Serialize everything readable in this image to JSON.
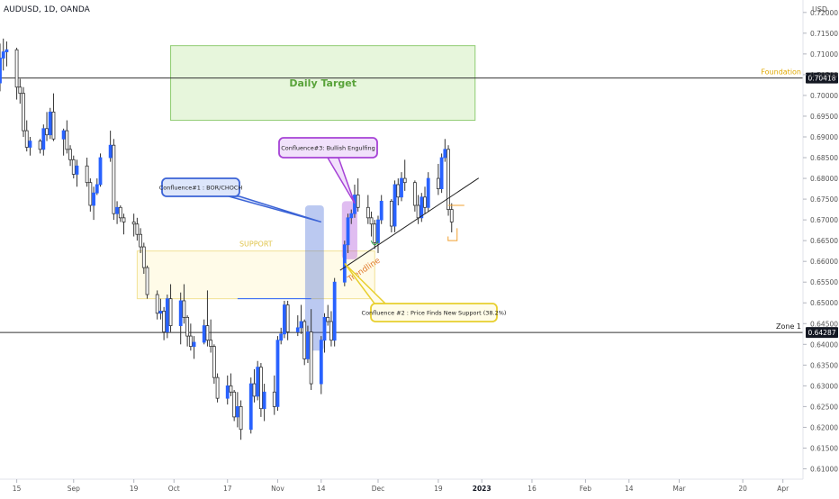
{
  "header": {
    "symbol": "AUDUSD, 1D, OANDA",
    "currency": "USD"
  },
  "colors": {
    "bull": "#2962ff",
    "bear": "#ffffff",
    "wick": "#333333",
    "axis_text": "#555555",
    "target_fill": "#e3f5d6",
    "target_border": "#7cc45a",
    "target_text": "#59a33a",
    "support_fill": "#fffbe6",
    "support_border": "#f1de8a",
    "support_text": "#e0c44a",
    "blue_callout": "#3b63d6",
    "blue_fill": "#dde6fb",
    "yellow_callout": "#e8cf2e",
    "yellow_fill": "#fffce8",
    "purple_callout": "#a642d6",
    "purple_fill": "#f1e1fb",
    "trend_text": "#e07a2c"
  },
  "chart_data": {
    "type": "candlestick",
    "title": "AUDUSD, 1D, OANDA",
    "y_unit": "USD",
    "ylim": [
      0.6075,
      0.723
    ],
    "y_ticks": [
      "0.72000",
      "0.71500",
      "0.71000",
      "0.70500",
      "0.70000",
      "0.69500",
      "0.69000",
      "0.68500",
      "0.68000",
      "0.67500",
      "0.67000",
      "0.66500",
      "0.66000",
      "0.65500",
      "0.65000",
      "0.64500",
      "0.64000",
      "0.63500",
      "0.63000",
      "0.62500",
      "0.62000",
      "0.61500",
      "0.61000"
    ],
    "y_tick_values": [
      0.72,
      0.715,
      0.71,
      0.705,
      0.7,
      0.695,
      0.69,
      0.685,
      0.68,
      0.675,
      0.67,
      0.665,
      0.66,
      0.655,
      0.65,
      0.645,
      0.64,
      0.635,
      0.63,
      0.625,
      0.62,
      0.615,
      0.61
    ],
    "x_ticks": [
      {
        "label": "15",
        "date": "2022-08-15"
      },
      {
        "label": "Sep",
        "date": "2022-09-01"
      },
      {
        "label": "19",
        "date": "2022-09-19"
      },
      {
        "label": "Oct",
        "date": "2022-10-01"
      },
      {
        "label": "17",
        "date": "2022-10-17"
      },
      {
        "label": "Nov",
        "date": "2022-11-01"
      },
      {
        "label": "14",
        "date": "2022-11-14"
      },
      {
        "label": "Dec",
        "date": "2022-12-01"
      },
      {
        "label": "19",
        "date": "2022-12-19"
      },
      {
        "label": "2023",
        "date": "2023-01-01"
      },
      {
        "label": "16",
        "date": "2023-01-16"
      },
      {
        "label": "Feb",
        "date": "2023-02-01"
      },
      {
        "label": "14",
        "date": "2023-02-14"
      },
      {
        "label": "Mar",
        "date": "2023-03-01"
      },
      {
        "label": "20",
        "date": "2023-03-20"
      },
      {
        "label": "Apr",
        "date": "2023-04-01"
      }
    ],
    "x_range": [
      "2022-08-10",
      "2023-04-07"
    ],
    "horizontal_levels": [
      {
        "name": "Foundation",
        "value": 0.70418,
        "label": "0.70418"
      },
      {
        "name": "Zone 1",
        "value": 0.64287,
        "label": "0.64287"
      }
    ],
    "zones": [
      {
        "name": "Daily Target",
        "date_from": "2022-09-30",
        "date_to": "2022-12-30",
        "y_from": 0.694,
        "y_to": 0.712
      },
      {
        "name": "SUPPORT",
        "date_from": "2022-09-20",
        "date_to": "2022-11-30",
        "y_from": 0.651,
        "y_to": 0.6625
      }
    ],
    "trendline": {
      "label": "Trendline",
      "from": {
        "date": "2022-11-21",
        "value": 0.6585
      },
      "to": {
        "date": "2022-12-23",
        "value": 0.679
      }
    },
    "annotations": [
      {
        "text": "Confluence#1 : BOR/CHOCH",
        "style": "blue",
        "target": {
          "date": "2022-11-14",
          "value": 0.6695
        }
      },
      {
        "text": "Confluence #2 : Price Finds New Support (38.2%)",
        "style": "yellow",
        "target": {
          "date": "2022-11-21",
          "value": 0.6595
        }
      },
      {
        "text": "Confluence#3: Bullish Engulfing",
        "style": "purple",
        "target": {
          "date": "2022-11-24",
          "value": 0.674
        }
      }
    ],
    "highlights": [
      {
        "style": "blue",
        "date_from": "2022-11-10",
        "date_to": "2022-11-14",
        "y_from": 0.6385,
        "y_to": 0.6735
      },
      {
        "style": "purple",
        "date_from": "2022-11-21",
        "date_to": "2022-11-24",
        "y_from": 0.6605,
        "y_to": 0.6745
      }
    ],
    "candles": [
      {
        "date": "2022-08-10",
        "o": 0.703,
        "h": 0.7125,
        "l": 0.701,
        "c": 0.709
      },
      {
        "date": "2022-08-11",
        "o": 0.709,
        "h": 0.7137,
        "l": 0.706,
        "c": 0.7105
      },
      {
        "date": "2022-08-12",
        "o": 0.7105,
        "h": 0.713,
        "l": 0.707,
        "c": 0.711
      },
      {
        "date": "2022-08-15",
        "o": 0.711,
        "h": 0.7115,
        "l": 0.699,
        "c": 0.702
      },
      {
        "date": "2022-08-16",
        "o": 0.702,
        "h": 0.704,
        "l": 0.698,
        "c": 0.7005
      },
      {
        "date": "2022-08-17",
        "o": 0.7005,
        "h": 0.702,
        "l": 0.69,
        "c": 0.6915
      },
      {
        "date": "2022-08-18",
        "o": 0.6915,
        "h": 0.694,
        "l": 0.6865,
        "c": 0.6875
      },
      {
        "date": "2022-08-19",
        "o": 0.6875,
        "h": 0.69,
        "l": 0.6855,
        "c": 0.689
      },
      {
        "date": "2022-08-22",
        "o": 0.689,
        "h": 0.6895,
        "l": 0.686,
        "c": 0.687
      },
      {
        "date": "2022-08-23",
        "o": 0.687,
        "h": 0.693,
        "l": 0.6855,
        "c": 0.692
      },
      {
        "date": "2022-08-24",
        "o": 0.692,
        "h": 0.696,
        "l": 0.689,
        "c": 0.6905
      },
      {
        "date": "2022-08-25",
        "o": 0.6905,
        "h": 0.697,
        "l": 0.6895,
        "c": 0.696
      },
      {
        "date": "2022-08-26",
        "o": 0.696,
        "h": 0.7005,
        "l": 0.689,
        "c": 0.6895
      },
      {
        "date": "2022-08-29",
        "o": 0.6895,
        "h": 0.692,
        "l": 0.6855,
        "c": 0.6915
      },
      {
        "date": "2022-08-30",
        "o": 0.6915,
        "h": 0.694,
        "l": 0.686,
        "c": 0.687
      },
      {
        "date": "2022-08-31",
        "o": 0.687,
        "h": 0.688,
        "l": 0.683,
        "c": 0.6845
      },
      {
        "date": "2022-09-01",
        "o": 0.6845,
        "h": 0.6855,
        "l": 0.68,
        "c": 0.681
      },
      {
        "date": "2022-09-02",
        "o": 0.681,
        "h": 0.6845,
        "l": 0.678,
        "c": 0.683
      },
      {
        "date": "2022-09-05",
        "o": 0.683,
        "h": 0.685,
        "l": 0.678,
        "c": 0.679
      },
      {
        "date": "2022-09-06",
        "o": 0.679,
        "h": 0.68,
        "l": 0.672,
        "c": 0.6735
      },
      {
        "date": "2022-09-07",
        "o": 0.6735,
        "h": 0.678,
        "l": 0.67,
        "c": 0.6765
      },
      {
        "date": "2022-09-08",
        "o": 0.6765,
        "h": 0.68,
        "l": 0.676,
        "c": 0.6785
      },
      {
        "date": "2022-09-09",
        "o": 0.6785,
        "h": 0.686,
        "l": 0.678,
        "c": 0.685
      },
      {
        "date": "2022-09-12",
        "o": 0.685,
        "h": 0.6915,
        "l": 0.684,
        "c": 0.688
      },
      {
        "date": "2022-09-13",
        "o": 0.688,
        "h": 0.6895,
        "l": 0.67,
        "c": 0.6715
      },
      {
        "date": "2022-09-14",
        "o": 0.6715,
        "h": 0.6745,
        "l": 0.669,
        "c": 0.673
      },
      {
        "date": "2022-09-15",
        "o": 0.673,
        "h": 0.6735,
        "l": 0.6695,
        "c": 0.6705
      },
      {
        "date": "2022-09-16",
        "o": 0.6705,
        "h": 0.6715,
        "l": 0.6665,
        "c": 0.6695
      },
      {
        "date": "2022-09-19",
        "o": 0.6695,
        "h": 0.6715,
        "l": 0.666,
        "c": 0.669
      },
      {
        "date": "2022-09-20",
        "o": 0.669,
        "h": 0.6705,
        "l": 0.665,
        "c": 0.6665
      },
      {
        "date": "2022-09-21",
        "o": 0.6665,
        "h": 0.668,
        "l": 0.662,
        "c": 0.6635
      },
      {
        "date": "2022-09-22",
        "o": 0.6635,
        "h": 0.6645,
        "l": 0.657,
        "c": 0.6585
      },
      {
        "date": "2022-09-23",
        "o": 0.6585,
        "h": 0.659,
        "l": 0.651,
        "c": 0.652
      },
      {
        "date": "2022-09-26",
        "o": 0.652,
        "h": 0.653,
        "l": 0.646,
        "c": 0.6475
      },
      {
        "date": "2022-09-27",
        "o": 0.6475,
        "h": 0.651,
        "l": 0.646,
        "c": 0.648
      },
      {
        "date": "2022-09-28",
        "o": 0.648,
        "h": 0.649,
        "l": 0.641,
        "c": 0.643
      },
      {
        "date": "2022-09-29",
        "o": 0.643,
        "h": 0.652,
        "l": 0.6415,
        "c": 0.651
      },
      {
        "date": "2022-09-30",
        "o": 0.651,
        "h": 0.6545,
        "l": 0.643,
        "c": 0.6445
      },
      {
        "date": "2022-10-03",
        "o": 0.6445,
        "h": 0.6525,
        "l": 0.64,
        "c": 0.6505
      },
      {
        "date": "2022-10-04",
        "o": 0.6505,
        "h": 0.6545,
        "l": 0.645,
        "c": 0.6465
      },
      {
        "date": "2022-10-05",
        "o": 0.6465,
        "h": 0.647,
        "l": 0.6395,
        "c": 0.642
      },
      {
        "date": "2022-10-06",
        "o": 0.642,
        "h": 0.645,
        "l": 0.6385,
        "c": 0.6395
      },
      {
        "date": "2022-10-07",
        "o": 0.6395,
        "h": 0.642,
        "l": 0.6365,
        "c": 0.6405
      },
      {
        "date": "2022-10-10",
        "o": 0.6405,
        "h": 0.646,
        "l": 0.64,
        "c": 0.6445
      },
      {
        "date": "2022-10-11",
        "o": 0.6445,
        "h": 0.653,
        "l": 0.6395,
        "c": 0.641
      },
      {
        "date": "2022-10-12",
        "o": 0.641,
        "h": 0.646,
        "l": 0.638,
        "c": 0.6395
      },
      {
        "date": "2022-10-13",
        "o": 0.6395,
        "h": 0.64,
        "l": 0.6305,
        "c": 0.632
      },
      {
        "date": "2022-10-14",
        "o": 0.632,
        "h": 0.633,
        "l": 0.626,
        "c": 0.627
      },
      {
        "date": "2022-10-17",
        "o": 0.627,
        "h": 0.6325,
        "l": 0.6255,
        "c": 0.63
      },
      {
        "date": "2022-10-18",
        "o": 0.63,
        "h": 0.633,
        "l": 0.6275,
        "c": 0.6285
      },
      {
        "date": "2022-10-19",
        "o": 0.6285,
        "h": 0.629,
        "l": 0.6215,
        "c": 0.6225
      },
      {
        "date": "2022-10-20",
        "o": 0.6225,
        "h": 0.6285,
        "l": 0.62,
        "c": 0.625
      },
      {
        "date": "2022-10-21",
        "o": 0.625,
        "h": 0.6265,
        "l": 0.617,
        "c": 0.6195
      },
      {
        "date": "2022-10-24",
        "o": 0.6195,
        "h": 0.632,
        "l": 0.6185,
        "c": 0.6305
      },
      {
        "date": "2022-10-25",
        "o": 0.6305,
        "h": 0.634,
        "l": 0.626,
        "c": 0.6275
      },
      {
        "date": "2022-10-26",
        "o": 0.6275,
        "h": 0.636,
        "l": 0.6265,
        "c": 0.6345
      },
      {
        "date": "2022-10-27",
        "o": 0.6345,
        "h": 0.6355,
        "l": 0.6225,
        "c": 0.6245
      },
      {
        "date": "2022-10-28",
        "o": 0.6245,
        "h": 0.6305,
        "l": 0.6215,
        "c": 0.6285
      },
      {
        "date": "2022-10-31",
        "o": 0.6285,
        "h": 0.6325,
        "l": 0.623,
        "c": 0.625
      },
      {
        "date": "2022-11-01",
        "o": 0.625,
        "h": 0.642,
        "l": 0.624,
        "c": 0.641
      },
      {
        "date": "2022-11-02",
        "o": 0.641,
        "h": 0.644,
        "l": 0.64,
        "c": 0.6425
      },
      {
        "date": "2022-11-03",
        "o": 0.6425,
        "h": 0.6505,
        "l": 0.6415,
        "c": 0.6495
      },
      {
        "date": "2022-11-04",
        "o": 0.6495,
        "h": 0.6505,
        "l": 0.641,
        "c": 0.643
      },
      {
        "date": "2022-11-07",
        "o": 0.643,
        "h": 0.647,
        "l": 0.642,
        "c": 0.644
      },
      {
        "date": "2022-11-08",
        "o": 0.644,
        "h": 0.6495,
        "l": 0.6425,
        "c": 0.6455
      },
      {
        "date": "2022-11-09",
        "o": 0.6455,
        "h": 0.646,
        "l": 0.635,
        "c": 0.6365
      },
      {
        "date": "2022-11-10",
        "o": 0.6365,
        "h": 0.6445,
        "l": 0.6355,
        "c": 0.643
      },
      {
        "date": "2022-11-11",
        "o": 0.643,
        "h": 0.6485,
        "l": 0.629,
        "c": 0.6305
      },
      {
        "date": "2022-11-14",
        "o": 0.6305,
        "h": 0.642,
        "l": 0.628,
        "c": 0.641
      },
      {
        "date": "2022-11-15",
        "o": 0.641,
        "h": 0.6475,
        "l": 0.638,
        "c": 0.6465
      },
      {
        "date": "2022-11-16",
        "o": 0.6465,
        "h": 0.6495,
        "l": 0.6445,
        "c": 0.6455
      },
      {
        "date": "2022-11-17",
        "o": 0.6455,
        "h": 0.648,
        "l": 0.6395,
        "c": 0.641
      },
      {
        "date": "2022-11-18",
        "o": 0.641,
        "h": 0.656,
        "l": 0.6395,
        "c": 0.655
      },
      {
        "date": "2022-11-21",
        "o": 0.655,
        "h": 0.665,
        "l": 0.654,
        "c": 0.664
      },
      {
        "date": "2022-11-22",
        "o": 0.664,
        "h": 0.6715,
        "l": 0.662,
        "c": 0.6705
      },
      {
        "date": "2022-11-23",
        "o": 0.6705,
        "h": 0.6725,
        "l": 0.669,
        "c": 0.6715
      },
      {
        "date": "2022-11-24",
        "o": 0.6715,
        "h": 0.6785,
        "l": 0.6705,
        "c": 0.676
      },
      {
        "date": "2022-11-25",
        "o": 0.676,
        "h": 0.68,
        "l": 0.672,
        "c": 0.673
      },
      {
        "date": "2022-11-28",
        "o": 0.673,
        "h": 0.676,
        "l": 0.669,
        "c": 0.6705
      },
      {
        "date": "2022-11-29",
        "o": 0.6705,
        "h": 0.672,
        "l": 0.666,
        "c": 0.669
      },
      {
        "date": "2022-11-30",
        "o": 0.669,
        "h": 0.67,
        "l": 0.663,
        "c": 0.6645
      },
      {
        "date": "2022-12-01",
        "o": 0.6645,
        "h": 0.671,
        "l": 0.662,
        "c": 0.67
      },
      {
        "date": "2022-12-02",
        "o": 0.67,
        "h": 0.676,
        "l": 0.669,
        "c": 0.6745
      },
      {
        "date": "2022-12-05",
        "o": 0.6745,
        "h": 0.675,
        "l": 0.667,
        "c": 0.6685
      },
      {
        "date": "2022-12-06",
        "o": 0.6685,
        "h": 0.6795,
        "l": 0.667,
        "c": 0.6785
      },
      {
        "date": "2022-12-07",
        "o": 0.6785,
        "h": 0.68,
        "l": 0.6735,
        "c": 0.6755
      },
      {
        "date": "2022-12-08",
        "o": 0.6755,
        "h": 0.6815,
        "l": 0.6745,
        "c": 0.68
      },
      {
        "date": "2022-12-09",
        "o": 0.68,
        "h": 0.6845,
        "l": 0.677,
        "c": 0.679
      },
      {
        "date": "2022-12-12",
        "o": 0.679,
        "h": 0.6795,
        "l": 0.672,
        "c": 0.6735
      },
      {
        "date": "2022-12-13",
        "o": 0.6735,
        "h": 0.676,
        "l": 0.669,
        "c": 0.6705
      },
      {
        "date": "2022-12-14",
        "o": 0.6705,
        "h": 0.6765,
        "l": 0.6695,
        "c": 0.6755
      },
      {
        "date": "2022-12-15",
        "o": 0.6755,
        "h": 0.678,
        "l": 0.6715,
        "c": 0.673
      },
      {
        "date": "2022-12-16",
        "o": 0.673,
        "h": 0.6815,
        "l": 0.672,
        "c": 0.68
      },
      {
        "date": "2022-12-19",
        "o": 0.68,
        "h": 0.6835,
        "l": 0.676,
        "c": 0.6775
      },
      {
        "date": "2022-12-20",
        "o": 0.6775,
        "h": 0.686,
        "l": 0.6765,
        "c": 0.685
      },
      {
        "date": "2022-12-21",
        "o": 0.685,
        "h": 0.6895,
        "l": 0.684,
        "c": 0.687
      },
      {
        "date": "2022-12-22",
        "o": 0.687,
        "h": 0.688,
        "l": 0.671,
        "c": 0.6725
      },
      {
        "date": "2022-12-23",
        "o": 0.6725,
        "h": 0.674,
        "l": 0.667,
        "c": 0.6695
      }
    ]
  },
  "labels": {
    "daily_target": "Daily Target",
    "support": "SUPPORT",
    "trendline": "Trendline",
    "foundation": "Foundation",
    "foundation_price": "0.70418",
    "zone1": "Zone 1",
    "zone1_price": "0.64287",
    "callout_blue": "Confluence#1 : BOR/CHOCH",
    "callout_yellow": "Confluence #2 : Price Finds New Support (38.2%)",
    "callout_purple": "Confluence#3: Bullish Engulfing"
  }
}
